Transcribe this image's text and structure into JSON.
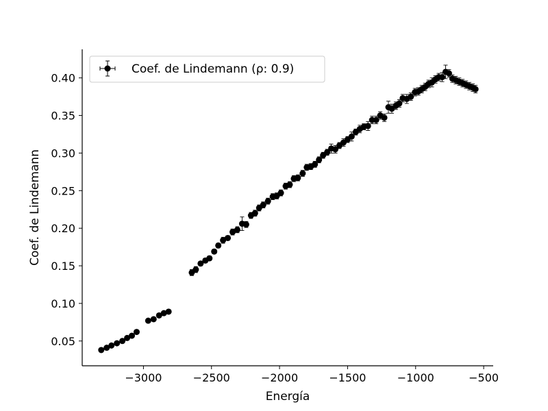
{
  "chart_data": {
    "type": "scatter",
    "xlabel": "Energía",
    "ylabel": "Coef. de Lindemann",
    "xlim": [
      -3450,
      -430
    ],
    "ylim": [
      0.017,
      0.438
    ],
    "xticks": [
      -3000,
      -2500,
      -2000,
      -1500,
      -1000,
      -500
    ],
    "xtick_labels": [
      "−3000",
      "−2500",
      "−2000",
      "−1500",
      "−1000",
      "−500"
    ],
    "yticks": [
      0.05,
      0.1,
      0.15,
      0.2,
      0.25,
      0.3,
      0.35,
      0.4
    ],
    "ytick_labels": [
      "0.05",
      "0.10",
      "0.15",
      "0.20",
      "0.25",
      "0.30",
      "0.35",
      "0.40"
    ],
    "grid": false,
    "legend_position": "top-left",
    "marker_color": "#000000",
    "series": [
      {
        "name": "Coef. de Lindemann (ρ: 0.9)",
        "x": [
          -3310,
          -3270,
          -3235,
          -3195,
          -3155,
          -3120,
          -3085,
          -3050,
          -2965,
          -2925,
          -2885,
          -2850,
          -2815,
          -2645,
          -2615,
          -2580,
          -2545,
          -2515,
          -2480,
          -2450,
          -2415,
          -2380,
          -2345,
          -2310,
          -2275,
          -2245,
          -2210,
          -2180,
          -2150,
          -2120,
          -2085,
          -2050,
          -2020,
          -1990,
          -1955,
          -1925,
          -1895,
          -1865,
          -1830,
          -1800,
          -1770,
          -1740,
          -1710,
          -1680,
          -1650,
          -1620,
          -1590,
          -1560,
          -1530,
          -1500,
          -1470,
          -1440,
          -1410,
          -1380,
          -1350,
          -1320,
          -1290,
          -1260,
          -1230,
          -1200,
          -1175,
          -1145,
          -1120,
          -1095,
          -1065,
          -1035,
          -1005,
          -980,
          -955,
          -930,
          -905,
          -880,
          -855,
          -830,
          -805,
          -780,
          -755,
          -730,
          -705,
          -680,
          -655,
          -630,
          -605,
          -580,
          -560
        ],
        "y": [
          0.038,
          0.041,
          0.044,
          0.047,
          0.05,
          0.054,
          0.057,
          0.062,
          0.077,
          0.079,
          0.084,
          0.087,
          0.089,
          0.141,
          0.145,
          0.153,
          0.157,
          0.16,
          0.169,
          0.177,
          0.184,
          0.187,
          0.195,
          0.198,
          0.206,
          0.205,
          0.217,
          0.22,
          0.227,
          0.231,
          0.236,
          0.242,
          0.243,
          0.247,
          0.256,
          0.258,
          0.266,
          0.267,
          0.273,
          0.281,
          0.282,
          0.285,
          0.291,
          0.297,
          0.301,
          0.306,
          0.305,
          0.31,
          0.314,
          0.318,
          0.322,
          0.328,
          0.332,
          0.335,
          0.336,
          0.344,
          0.344,
          0.35,
          0.347,
          0.361,
          0.359,
          0.363,
          0.366,
          0.373,
          0.372,
          0.375,
          0.381,
          0.382,
          0.385,
          0.388,
          0.392,
          0.394,
          0.398,
          0.401,
          0.401,
          0.408,
          0.406,
          0.399,
          0.397,
          0.395,
          0.393,
          0.391,
          0.389,
          0.387,
          0.385
        ],
        "yerr": [
          0.002,
          0.002,
          0.002,
          0.002,
          0.002,
          0.002,
          0.002,
          0.002,
          0.002,
          0.002,
          0.002,
          0.002,
          0.002,
          0.004,
          0.004,
          0.003,
          0.003,
          0.003,
          0.003,
          0.003,
          0.004,
          0.003,
          0.004,
          0.004,
          0.009,
          0.004,
          0.004,
          0.004,
          0.004,
          0.004,
          0.004,
          0.004,
          0.004,
          0.004,
          0.004,
          0.004,
          0.004,
          0.004,
          0.004,
          0.004,
          0.004,
          0.004,
          0.004,
          0.004,
          0.004,
          0.006,
          0.005,
          0.004,
          0.005,
          0.004,
          0.006,
          0.004,
          0.005,
          0.004,
          0.006,
          0.005,
          0.005,
          0.005,
          0.005,
          0.008,
          0.006,
          0.005,
          0.005,
          0.005,
          0.006,
          0.005,
          0.005,
          0.005,
          0.005,
          0.005,
          0.005,
          0.006,
          0.005,
          0.005,
          0.006,
          0.009,
          0.005,
          0.005,
          0.005,
          0.005,
          0.005,
          0.005,
          0.005,
          0.005,
          0.005
        ],
        "xerr": [
          8,
          8,
          8,
          8,
          8,
          8,
          8,
          8,
          8,
          8,
          8,
          8,
          8,
          8,
          8,
          8,
          8,
          8,
          8,
          8,
          8,
          8,
          8,
          8,
          8,
          8,
          8,
          8,
          8,
          8,
          8,
          8,
          8,
          8,
          8,
          8,
          8,
          8,
          8,
          8,
          8,
          8,
          8,
          8,
          8,
          8,
          8,
          8,
          8,
          8,
          8,
          8,
          8,
          8,
          8,
          8,
          8,
          8,
          8,
          8,
          8,
          8,
          8,
          8,
          8,
          8,
          8,
          8,
          8,
          8,
          8,
          8,
          8,
          8,
          8,
          8,
          8,
          8,
          8,
          8,
          8,
          8,
          8,
          8,
          8
        ]
      }
    ]
  }
}
